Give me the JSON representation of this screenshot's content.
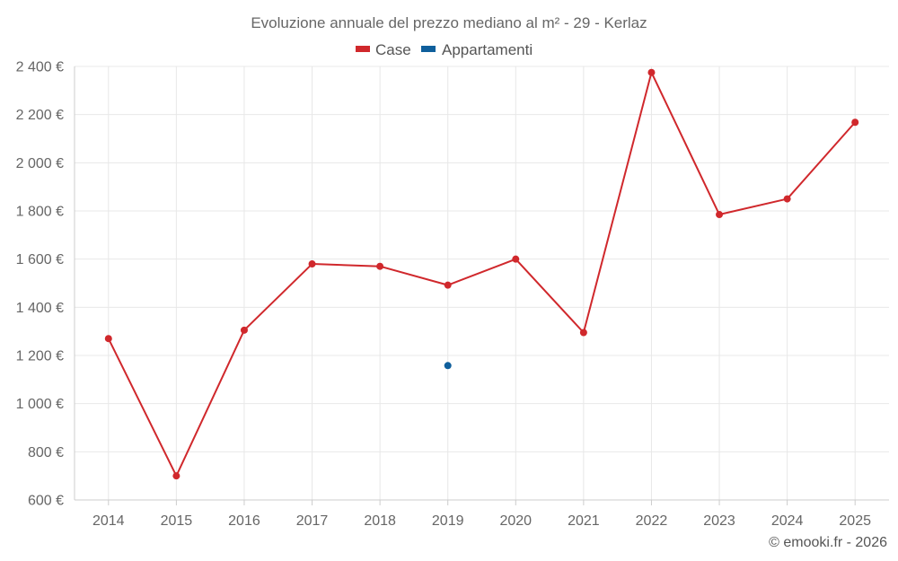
{
  "chart_data": {
    "type": "line",
    "title": "Evoluzione annuale del prezzo mediano al m² - 29 - Kerlaz",
    "categories": [
      "2014",
      "2015",
      "2016",
      "2017",
      "2018",
      "2019",
      "2020",
      "2021",
      "2022",
      "2023",
      "2024",
      "2025"
    ],
    "series": [
      {
        "name": "Case",
        "color": "#d0282c",
        "values": [
          1270,
          700,
          1305,
          1580,
          1570,
          1492,
          1600,
          1295,
          2375,
          1785,
          1850,
          2168
        ]
      },
      {
        "name": "Appartamenti",
        "color": "#0f5f9c",
        "values": [
          null,
          null,
          null,
          null,
          null,
          1158,
          null,
          null,
          null,
          null,
          null,
          null
        ]
      }
    ],
    "ylim": [
      600,
      2400
    ],
    "yticks": [
      600,
      800,
      1000,
      1200,
      1400,
      1600,
      1800,
      2000,
      2200,
      2400
    ],
    "ytick_labels": [
      "600 €",
      "800 €",
      "1 000 €",
      "1 200 €",
      "1 400 €",
      "1 600 €",
      "1 800 €",
      "2 000 €",
      "2 200 €",
      "2 400 €"
    ],
    "grid": true,
    "legend_position": "top-center"
  },
  "credit": "© emooki.fr - 2026"
}
